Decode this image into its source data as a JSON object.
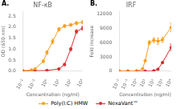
{
  "chart_data": [
    {
      "type": "line",
      "title": "NF-κB",
      "annotations": [
        "A."
      ],
      "xlabel": "Concentration (ng/ml)",
      "ylabel": "OD (650 nm)",
      "log": "x",
      "grid": false,
      "legend": "bottom",
      "xlim": [
        0.01,
        1000
      ],
      "xticks": [
        {
          "value": 0.01,
          "label": "10⁻²"
        },
        {
          "value": 0.1,
          "label": "10⁻¹"
        },
        {
          "value": 1,
          "label": "10⁰"
        },
        {
          "value": 10,
          "label": "10¹"
        },
        {
          "value": 100,
          "label": "10²"
        },
        {
          "value": 1000,
          "label": "10³"
        }
      ],
      "ylim": [
        0,
        2.7
      ],
      "yticks": [
        {
          "value": 0.0,
          "label": "0.0"
        },
        0.5,
        {
          "value": 1.0,
          "label": "1.0"
        },
        1.5,
        {
          "value": 2.0,
          "label": "2.0"
        },
        2.5
      ],
      "series": [
        {
          "name": "Poly(I:C) HMW",
          "color": "#F5A020",
          "marker": "circle",
          "line_style": "solid",
          "x": [
            0.01,
            0.05,
            0.1,
            0.5,
            1,
            3,
            10,
            30,
            100,
            300,
            1000
          ],
          "values": [
            0.02,
            0.05,
            0.1,
            0.45,
            0.85,
            1.35,
            1.9,
            2.05,
            2.1,
            2.18,
            2.22
          ],
          "errors": [
            0.01,
            0.02,
            0.03,
            0.06,
            0.08,
            0.1,
            0.08,
            0.06,
            0.06,
            0.07,
            0.08
          ]
        },
        {
          "name": "NexaVant™",
          "color": "#D83030",
          "marker": "circle",
          "line_style": "solid",
          "x": [
            0.01,
            0.1,
            1,
            10,
            30,
            100,
            300,
            1000
          ],
          "values": [
            0.01,
            0.02,
            0.03,
            0.1,
            0.3,
            1.0,
            1.8,
            1.95
          ],
          "errors": [
            0.005,
            0.008,
            0.01,
            0.02,
            0.05,
            0.07,
            0.08,
            0.09
          ]
        }
      ]
    },
    {
      "type": "line",
      "title": "IRF",
      "annotations": [
        "B."
      ],
      "xlabel": "Concentration (ng/ml)",
      "ylabel": "Fold increase",
      "log": "x",
      "grid": false,
      "legend": "bottom",
      "xlim": [
        0.01,
        10000
      ],
      "xticks": [
        {
          "value": 0.01,
          "label": "10⁻²"
        },
        {
          "value": 0.1,
          "label": "10⁻¹"
        },
        {
          "value": 1,
          "label": "10⁰"
        },
        {
          "value": 10,
          "label": "10¹"
        },
        {
          "value": 100,
          "label": "10²"
        },
        {
          "value": 1000,
          "label": "10³"
        },
        {
          "value": 10000,
          "label": "10⁴"
        }
      ],
      "ylim": [
        0,
        12500
      ],
      "yticks": [
        0,
        3000,
        6000,
        9000,
        12000
      ],
      "series": [
        {
          "name": "Poly(I:C) HMW",
          "color": "#F5A020",
          "marker": "circle",
          "line_style": "solid",
          "x": [
            0.01,
            0.1,
            1,
            5,
            10,
            30,
            100,
            300,
            1000,
            10000
          ],
          "values": [
            10,
            20,
            50,
            500,
            2200,
            6000,
            6500,
            6300,
            6600,
            9200
          ],
          "errors": [
            5,
            8,
            15,
            60,
            200,
            400,
            500,
            650,
            550,
            900
          ]
        },
        {
          "name": "NexaVant™",
          "color": "#D83030",
          "marker": "circle",
          "line_style": "solid",
          "x": [
            0.01,
            0.1,
            1,
            10,
            100,
            300,
            1000,
            10000
          ],
          "values": [
            5,
            8,
            10,
            15,
            80,
            400,
            1800,
            5000
          ],
          "errors": [
            3,
            3,
            4,
            5,
            15,
            70,
            180,
            700
          ]
        }
      ]
    }
  ]
}
